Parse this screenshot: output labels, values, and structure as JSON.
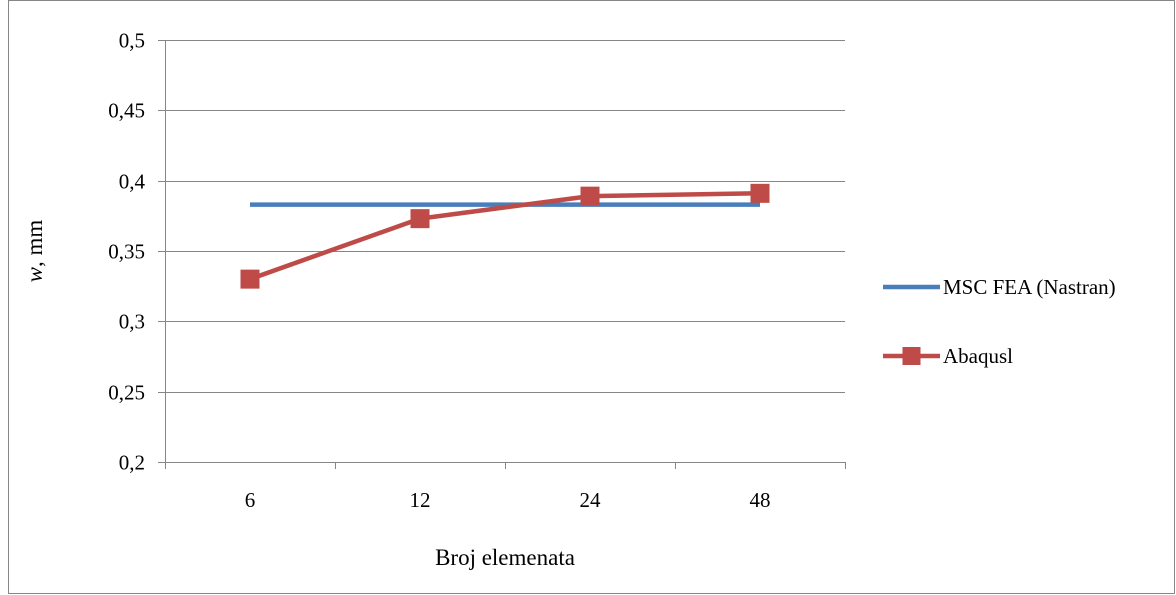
{
  "chart_data": {
    "type": "line",
    "title": "",
    "xlabel": "Broj elemenata",
    "ylabel_italic": "w",
    "ylabel_rest": ", mm",
    "categories": [
      "6",
      "12",
      "24",
      "48"
    ],
    "ylim": [
      0.2,
      0.5
    ],
    "yticks": [
      0.2,
      0.25,
      0.3,
      0.35,
      0.4,
      0.45,
      0.5
    ],
    "ytick_labels": [
      "0,2",
      "0,25",
      "0,3",
      "0,35",
      "0,4",
      "0,45",
      "0,5"
    ],
    "grid": "horizontal",
    "legend_position": "right",
    "series": [
      {
        "name": "MSC FEA (Nastran)",
        "values": [
          0.383,
          0.383,
          0.383,
          0.383
        ],
        "color": "#4a7ebb",
        "marker": "none"
      },
      {
        "name": "Abaqusl",
        "values": [
          0.33,
          0.373,
          0.389,
          0.391
        ],
        "color": "#be4b48",
        "marker": "square"
      }
    ]
  }
}
